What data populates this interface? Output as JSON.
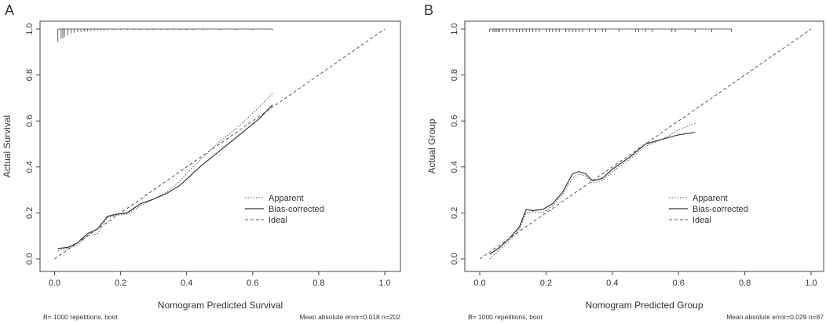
{
  "chart_data": [
    {
      "type": "line",
      "panel_label": "A",
      "title": "",
      "xlabel": "Nomogram Predicted Survival",
      "ylabel": "Actual Survival",
      "xlim": [
        0,
        1.0
      ],
      "ylim": [
        0,
        1.0
      ],
      "xticks": [
        0.0,
        0.2,
        0.4,
        0.6,
        0.8,
        1.0
      ],
      "xtick_labels": [
        "0.0",
        "0.2",
        "0.4",
        "0.6",
        "0.8",
        "1.0"
      ],
      "yticks": [
        0.0,
        0.2,
        0.4,
        0.6,
        0.8,
        1.0
      ],
      "ytick_labels": [
        "0.0",
        "0.2",
        "0.4",
        "0.6",
        "0.8",
        "1.0"
      ],
      "legend_position": "center-right",
      "series": [
        {
          "name": "Apparent",
          "style": "dotted",
          "points": [
            [
              0.01,
              0.035
            ],
            [
              0.04,
              0.045
            ],
            [
              0.07,
              0.06
            ],
            [
              0.1,
              0.1
            ],
            [
              0.13,
              0.11
            ],
            [
              0.16,
              0.18
            ],
            [
              0.19,
              0.19
            ],
            [
              0.22,
              0.195
            ],
            [
              0.26,
              0.23
            ],
            [
              0.3,
              0.26
            ],
            [
              0.34,
              0.29
            ],
            [
              0.38,
              0.34
            ],
            [
              0.44,
              0.43
            ],
            [
              0.5,
              0.51
            ],
            [
              0.56,
              0.58
            ],
            [
              0.62,
              0.66
            ],
            [
              0.66,
              0.72
            ]
          ]
        },
        {
          "name": "Bias-corrected",
          "style": "solid",
          "points": [
            [
              0.01,
              0.045
            ],
            [
              0.04,
              0.05
            ],
            [
              0.07,
              0.07
            ],
            [
              0.1,
              0.11
            ],
            [
              0.13,
              0.13
            ],
            [
              0.16,
              0.185
            ],
            [
              0.19,
              0.195
            ],
            [
              0.22,
              0.2
            ],
            [
              0.26,
              0.24
            ],
            [
              0.3,
              0.26
            ],
            [
              0.34,
              0.285
            ],
            [
              0.38,
              0.32
            ],
            [
              0.44,
              0.4
            ],
            [
              0.5,
              0.47
            ],
            [
              0.56,
              0.54
            ],
            [
              0.62,
              0.61
            ],
            [
              0.66,
              0.67
            ]
          ]
        },
        {
          "name": "Ideal",
          "style": "dashed",
          "points": [
            [
              0,
              0
            ],
            [
              1.0,
              1.0
            ]
          ]
        }
      ],
      "rug": [
        0.01,
        0.02,
        0.025,
        0.03,
        0.04,
        0.05,
        0.06,
        0.07,
        0.08,
        0.09,
        0.1,
        0.11,
        0.12,
        0.13,
        0.14,
        0.15,
        0.16,
        0.18,
        0.2,
        0.22,
        0.24,
        0.26,
        0.28,
        0.3,
        0.32,
        0.34,
        0.36,
        0.38,
        0.4,
        0.42,
        0.45,
        0.5,
        0.55,
        0.6,
        0.66
      ],
      "rug_heights": [
        4,
        3,
        3,
        2.5,
        2,
        1.5,
        1.2,
        1,
        0.9,
        0.8,
        0.7,
        0.6,
        0.6,
        0.5,
        0.5,
        0.4,
        0.4,
        0.3,
        0.3,
        0.3,
        0.3,
        0.3,
        0.3,
        0.3,
        0.3,
        0.3,
        0.3,
        0.3,
        0.3,
        0.3,
        0.3,
        0.3,
        0.3,
        0.3,
        0.3
      ],
      "footer_left": "B= 1000 repetitions, boot",
      "footer_right": "Mean absolute error=0.018 n=202"
    },
    {
      "type": "line",
      "panel_label": "B",
      "title": "",
      "xlabel": "Nomogram Predicted Group",
      "ylabel": "Actual Group",
      "xlim": [
        0,
        1.0
      ],
      "ylim": [
        0,
        1.0
      ],
      "xticks": [
        0.0,
        0.2,
        0.4,
        0.6,
        0.8,
        1.0
      ],
      "xtick_labels": [
        "0.0",
        "0.2",
        "0.4",
        "0.6",
        "0.8",
        "1.0"
      ],
      "yticks": [
        0.0,
        0.2,
        0.4,
        0.6,
        0.8,
        1.0
      ],
      "ytick_labels": [
        "0.0",
        "0.2",
        "0.4",
        "0.6",
        "0.8",
        "1.0"
      ],
      "legend_position": "center-right",
      "series": [
        {
          "name": "Apparent",
          "style": "dotted",
          "points": [
            [
              0.03,
              0.0
            ],
            [
              0.06,
              0.04
            ],
            [
              0.09,
              0.08
            ],
            [
              0.12,
              0.13
            ],
            [
              0.14,
              0.2
            ],
            [
              0.16,
              0.205
            ],
            [
              0.19,
              0.2
            ],
            [
              0.22,
              0.23
            ],
            [
              0.25,
              0.28
            ],
            [
              0.28,
              0.35
            ],
            [
              0.3,
              0.37
            ],
            [
              0.32,
              0.36
            ],
            [
              0.34,
              0.33
            ],
            [
              0.37,
              0.34
            ],
            [
              0.4,
              0.38
            ],
            [
              0.45,
              0.43
            ],
            [
              0.5,
              0.49
            ],
            [
              0.55,
              0.52
            ],
            [
              0.6,
              0.56
            ],
            [
              0.65,
              0.59
            ]
          ]
        },
        {
          "name": "Bias-corrected",
          "style": "solid",
          "points": [
            [
              0.03,
              0.02
            ],
            [
              0.06,
              0.05
            ],
            [
              0.09,
              0.09
            ],
            [
              0.12,
              0.14
            ],
            [
              0.14,
              0.215
            ],
            [
              0.16,
              0.21
            ],
            [
              0.19,
              0.215
            ],
            [
              0.22,
              0.24
            ],
            [
              0.25,
              0.29
            ],
            [
              0.28,
              0.37
            ],
            [
              0.3,
              0.38
            ],
            [
              0.32,
              0.37
            ],
            [
              0.34,
              0.34
            ],
            [
              0.37,
              0.35
            ],
            [
              0.4,
              0.39
            ],
            [
              0.45,
              0.44
            ],
            [
              0.5,
              0.5
            ],
            [
              0.55,
              0.52
            ],
            [
              0.6,
              0.54
            ],
            [
              0.65,
              0.55
            ]
          ]
        },
        {
          "name": "Ideal",
          "style": "dashed",
          "points": [
            [
              0,
              0
            ],
            [
              1.0,
              1.0
            ]
          ]
        }
      ],
      "rug": [
        0.03,
        0.04,
        0.045,
        0.05,
        0.055,
        0.06,
        0.07,
        0.08,
        0.09,
        0.1,
        0.11,
        0.12,
        0.13,
        0.14,
        0.15,
        0.16,
        0.17,
        0.18,
        0.2,
        0.21,
        0.22,
        0.23,
        0.24,
        0.26,
        0.27,
        0.28,
        0.29,
        0.3,
        0.31,
        0.33,
        0.35,
        0.37,
        0.38,
        0.42,
        0.47,
        0.48,
        0.5,
        0.52,
        0.58,
        0.59,
        0.65,
        0.7,
        0.76
      ],
      "rug_heights": [
        1,
        1,
        1,
        1,
        1,
        1,
        1,
        1,
        1,
        1,
        1,
        1,
        1,
        1,
        1,
        1,
        1,
        1,
        1,
        1,
        1,
        1,
        1,
        1,
        1,
        1,
        1,
        1,
        1,
        1,
        1,
        1,
        1,
        1,
        1,
        1,
        1,
        1,
        1,
        1,
        1,
        1,
        1
      ],
      "footer_left": "B= 1000 repetitions, boot",
      "footer_right": "Mean absolute error=0.029 n=87"
    }
  ]
}
